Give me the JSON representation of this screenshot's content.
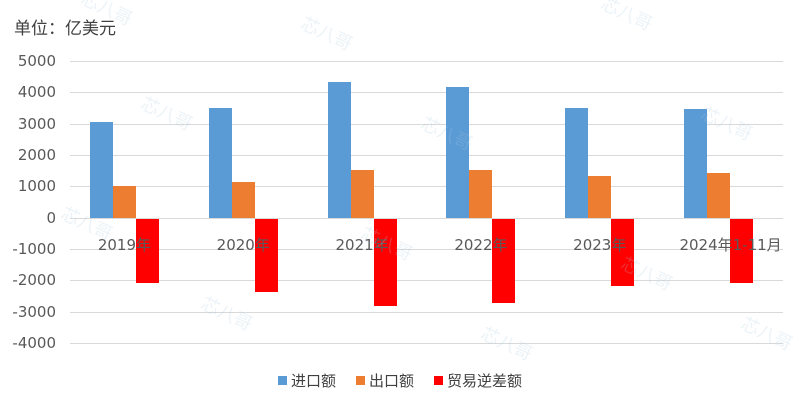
{
  "chart_data": {
    "type": "bar",
    "title": "",
    "unit_label": "单位：亿美元",
    "xlabel": "",
    "ylabel": "亿美元",
    "ylim": [
      -4000,
      5000
    ],
    "yticks": [
      5000,
      4000,
      3000,
      2000,
      1000,
      0,
      -1000,
      -2000,
      -3000,
      -4000
    ],
    "grid": true,
    "legend_position": "bottom",
    "categories": [
      "2019年",
      "2020年",
      "2021年",
      "2022年",
      "2023年",
      "2024年1-11月"
    ],
    "series": [
      {
        "name": "进口额",
        "color": "#5b9bd5",
        "values": [
          3050,
          3500,
          4320,
          4160,
          3500,
          3480
        ]
      },
      {
        "name": "出口额",
        "color": "#ed7d31",
        "values": [
          1000,
          1130,
          1520,
          1520,
          1320,
          1440
        ]
      },
      {
        "name": "贸易逆差额",
        "color": "#ff0000",
        "values": [
          -2050,
          -2350,
          -2780,
          -2680,
          -2160,
          -2050
        ]
      }
    ]
  },
  "watermark": "芯八哥"
}
